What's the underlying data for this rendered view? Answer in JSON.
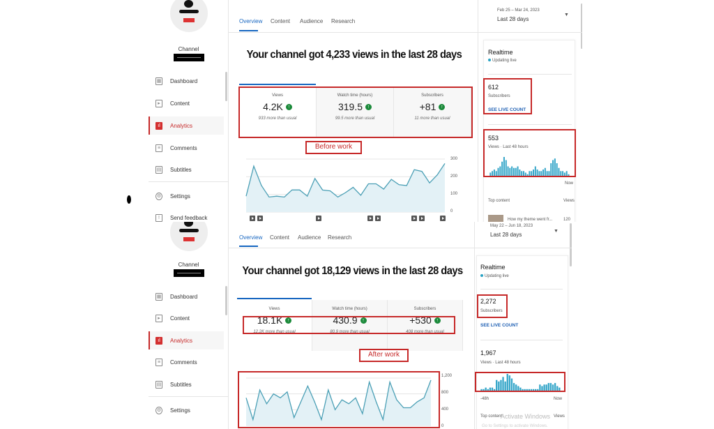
{
  "panels": [
    {
      "sidebar": {
        "channel_label": "Channel",
        "items": [
          {
            "label": "Dashboard",
            "icon": "dashboard-icon"
          },
          {
            "label": "Content",
            "icon": "content-icon"
          },
          {
            "label": "Analytics",
            "icon": "analytics-icon",
            "active": true
          },
          {
            "label": "Comments",
            "icon": "comments-icon"
          },
          {
            "label": "Subtitles",
            "icon": "subtitles-icon"
          },
          {
            "label": "Settings",
            "icon": "gear-icon"
          },
          {
            "label": "Send feedback",
            "icon": "feedback-icon"
          }
        ]
      },
      "tabs": [
        "Overview",
        "Content",
        "Audience",
        "Research"
      ],
      "active_tab": "Overview",
      "date_range": "Feb 25 – Mar 24, 2023",
      "period": "Last 28 days",
      "title": "Your channel got 4,233 views in the last 28 days",
      "metrics": [
        {
          "label": "Views",
          "value": "4.2K",
          "sub": "933 more than usual"
        },
        {
          "label": "Watch time (hours)",
          "value": "319.5",
          "sub": "99.5 more than usual"
        },
        {
          "label": "Subscribers",
          "value": "+81",
          "sub": "11 more than usual"
        }
      ],
      "annotation": "Before work",
      "realtime": {
        "title": "Realtime",
        "status": "Updating live",
        "subscribers": "612",
        "subscribers_label": "Subscribers",
        "see_live": "SEE LIVE COUNT",
        "views": "553",
        "views_label": "Views · Last 48 hours",
        "axis_start": "",
        "axis_end": "Now",
        "top_content": "Top content",
        "views_col": "Views",
        "top_item": "How my theme went fr...",
        "top_item_views": "120",
        "bars": [
          2,
          3,
          4,
          3,
          5,
          6,
          9,
          12,
          10,
          6,
          5,
          6,
          5,
          5,
          6,
          4,
          3,
          3,
          2,
          1,
          3,
          3,
          4,
          6,
          4,
          3,
          3,
          4,
          5,
          3,
          3,
          8,
          10,
          11,
          8,
          5,
          3,
          3,
          2,
          3,
          1
        ]
      }
    },
    {
      "sidebar": {
        "channel_label": "Channel",
        "items": [
          {
            "label": "Dashboard",
            "icon": "dashboard-icon"
          },
          {
            "label": "Content",
            "icon": "content-icon"
          },
          {
            "label": "Analytics",
            "icon": "analytics-icon",
            "active": true
          },
          {
            "label": "Comments",
            "icon": "comments-icon"
          },
          {
            "label": "Subtitles",
            "icon": "subtitles-icon"
          },
          {
            "label": "Settings",
            "icon": "gear-icon"
          }
        ]
      },
      "tabs": [
        "Overview",
        "Content",
        "Audience",
        "Research"
      ],
      "active_tab": "Overview",
      "date_range": "May 22 – Jun 18, 2023",
      "period": "Last 28 days",
      "title": "Your channel got 18,129 views in the last 28 days",
      "metrics": [
        {
          "label": "Views",
          "value": "18.1K",
          "sub": "12.2K more than usual"
        },
        {
          "label": "Watch time (hours)",
          "value": "430.9",
          "sub": "80.9 more than usual"
        },
        {
          "label": "Subscribers",
          "value": "+530",
          "sub": "408 more than usual"
        }
      ],
      "annotation": "After work",
      "realtime": {
        "title": "Realtime",
        "status": "Updating live",
        "subscribers": "2,272",
        "subscribers_label": "Subscribers",
        "see_live": "SEE LIVE COUNT",
        "views": "1,967",
        "views_label": "Views · Last 48 hours",
        "axis_start": "-48h",
        "axis_end": "Now",
        "top_content": "Top content",
        "views_col": "Views",
        "bars": [
          1,
          1,
          2,
          1,
          2,
          2,
          1,
          7,
          6,
          7,
          9,
          6,
          11,
          10,
          8,
          5,
          4,
          3,
          2,
          1,
          1,
          1,
          1,
          1,
          1,
          1,
          1,
          4,
          3,
          4,
          4,
          5,
          5,
          4,
          5,
          3,
          2
        ]
      },
      "watermark": "Activate Windows",
      "watermark_sub": "Go to Settings to activate Windows."
    }
  ],
  "chart_data": [
    {
      "type": "area",
      "title": "",
      "ylim": [
        0,
        300
      ],
      "yticks": [
        "300",
        "200",
        "100",
        "0"
      ],
      "values": [
        90,
        260,
        150,
        85,
        90,
        85,
        125,
        125,
        90,
        190,
        125,
        120,
        85,
        110,
        140,
        95,
        160,
        160,
        130,
        185,
        155,
        150,
        240,
        230,
        165,
        210,
        275
      ],
      "color": "#4a9fb5"
    },
    {
      "type": "area",
      "title": "",
      "ylim": [
        0,
        1200
      ],
      "yticks": [
        "1,200",
        "800",
        "400",
        "0"
      ],
      "values": [
        700,
        150,
        900,
        550,
        800,
        700,
        850,
        200,
        600,
        1000,
        600,
        150,
        900,
        400,
        650,
        550,
        700,
        300,
        1100,
        600,
        150,
        1100,
        650,
        450,
        450,
        600,
        700,
        1150
      ],
      "color": "#4a9fb5"
    }
  ],
  "colors": {
    "accent": "#1565c0",
    "annotation": "#c62828",
    "active_nav": "#c62828",
    "up": "#1b8a3a",
    "chart": "#4a9fb5"
  }
}
